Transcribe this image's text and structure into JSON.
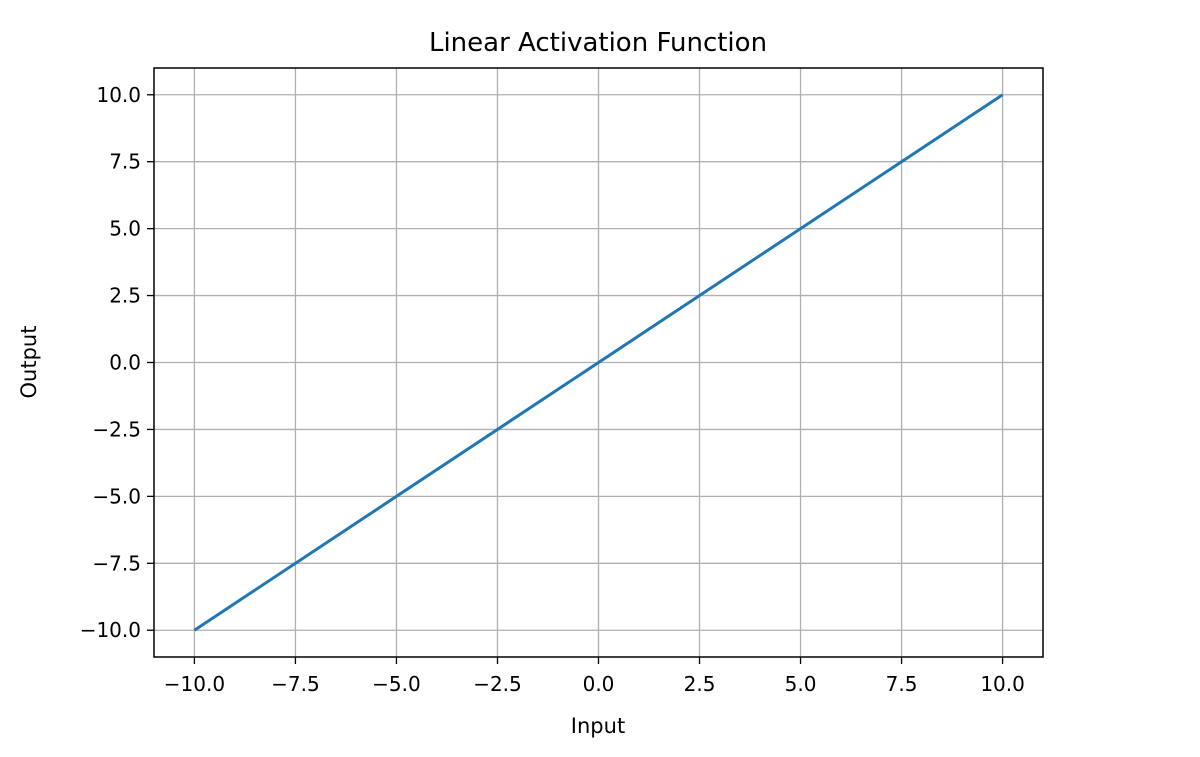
{
  "chart_data": {
    "type": "line",
    "title": "Linear Activation Function",
    "xlabel": "Input",
    "ylabel": "Output",
    "xlim": [
      -11,
      11
    ],
    "ylim": [
      -11,
      11
    ],
    "xticks": [
      -10,
      -7.5,
      -5,
      -2.5,
      0,
      2.5,
      5,
      7.5,
      10
    ],
    "yticks": [
      -10,
      -7.5,
      -5,
      -2.5,
      0,
      2.5,
      5,
      7.5,
      10
    ],
    "xtick_labels": [
      "−10.0",
      "−7.5",
      "−5.0",
      "−2.5",
      "0.0",
      "2.5",
      "5.0",
      "7.5",
      "10.0"
    ],
    "ytick_labels": [
      "−10.0",
      "−7.5",
      "−5.0",
      "−2.5",
      "0.0",
      "2.5",
      "5.0",
      "7.5",
      "10.0"
    ],
    "grid": true,
    "series": [
      {
        "color": "#1f77b4",
        "x": [
          -10,
          10
        ],
        "y": [
          -10,
          10
        ]
      }
    ]
  },
  "colors": {
    "line": "#1f77b4",
    "grid": "#b0b0b0",
    "axes": "#000000"
  }
}
